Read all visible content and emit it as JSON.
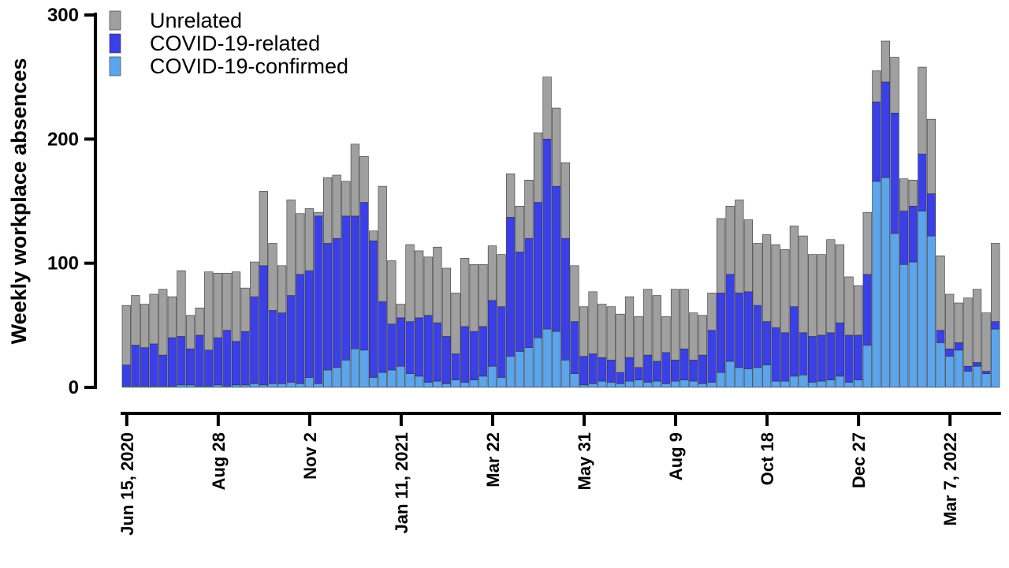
{
  "chart_data": {
    "type": "bar",
    "stacked": true,
    "title": "",
    "xlabel": "",
    "ylabel": "Weekly workplace absences",
    "ylim": [
      0,
      300
    ],
    "yticks": [
      0,
      100,
      200,
      300
    ],
    "grid": false,
    "legend_position": "top-left",
    "x_tick_labels": [
      {
        "week_index": 0,
        "label": "Jun 15, 2020"
      },
      {
        "week_index": 10,
        "label": "Aug 28"
      },
      {
        "week_index": 20,
        "label": "Nov 2"
      },
      {
        "week_index": 30,
        "label": "Jan 11, 2021"
      },
      {
        "week_index": 40,
        "label": "Mar 22"
      },
      {
        "week_index": 50,
        "label": "May 31"
      },
      {
        "week_index": 60,
        "label": "Aug 9"
      },
      {
        "week_index": 70,
        "label": "Oct 18"
      },
      {
        "week_index": 80,
        "label": "Dec 27"
      },
      {
        "week_index": 90,
        "label": "Mar 7, 2022"
      }
    ],
    "series": [
      {
        "name": "COVID-19-confirmed",
        "color": "#5aa5ec",
        "values": [
          1,
          1,
          1,
          1,
          1,
          1,
          2,
          2,
          1,
          1,
          2,
          1,
          2,
          2,
          3,
          2,
          3,
          3,
          4,
          3,
          8,
          3,
          14,
          16,
          22,
          31,
          30,
          8,
          12,
          14,
          17,
          11,
          9,
          4,
          5,
          3,
          6,
          4,
          6,
          9,
          17,
          8,
          25,
          29,
          32,
          40,
          47,
          45,
          22,
          11,
          2,
          3,
          5,
          4,
          3,
          5,
          6,
          4,
          5,
          3,
          5,
          6,
          5,
          3,
          4,
          12,
          21,
          16,
          15,
          16,
          18,
          5,
          5,
          9,
          10,
          4,
          5,
          6,
          9,
          4,
          6,
          34,
          166,
          169,
          124,
          99,
          101,
          142,
          122,
          36,
          25,
          30,
          13,
          17,
          11,
          47
        ]
      },
      {
        "name": "COVID-19-related",
        "color": "#3a3fe6",
        "values": [
          17,
          33,
          31,
          34,
          25,
          39,
          39,
          29,
          41,
          29,
          38,
          45,
          35,
          43,
          70,
          96,
          59,
          57,
          70,
          88,
          86,
          135,
          102,
          104,
          116,
          107,
          119,
          110,
          57,
          37,
          39,
          42,
          47,
          54,
          47,
          38,
          21,
          45,
          39,
          40,
          53,
          57,
          112,
          80,
          88,
          109,
          153,
          117,
          98,
          42,
          23,
          24,
          19,
          18,
          9,
          19,
          10,
          22,
          16,
          25,
          17,
          25,
          17,
          23,
          42,
          64,
          70,
          60,
          62,
          50,
          35,
          43,
          39,
          56,
          34,
          37,
          37,
          38,
          43,
          38,
          36,
          57,
          64,
          77,
          97,
          43,
          45,
          46,
          34,
          10,
          6,
          6,
          4,
          3,
          2,
          6
        ]
      },
      {
        "name": "Unrelated",
        "color": "#a0a0a0",
        "values": [
          48,
          40,
          35,
          40,
          53,
          33,
          53,
          27,
          22,
          63,
          52,
          46,
          56,
          35,
          28,
          60,
          54,
          38,
          77,
          49,
          50,
          3,
          53,
          51,
          28,
          58,
          37,
          8,
          93,
          51,
          11,
          62,
          54,
          47,
          61,
          55,
          49,
          55,
          54,
          50,
          44,
          42,
          35,
          37,
          47,
          56,
          50,
          63,
          61,
          45,
          40,
          50,
          43,
          43,
          47,
          49,
          41,
          53,
          53,
          29,
          57,
          48,
          38,
          32,
          30,
          60,
          55,
          75,
          58,
          50,
          70,
          67,
          67,
          65,
          78,
          66,
          65,
          75,
          63,
          47,
          40,
          50,
          25,
          33,
          45,
          26,
          21,
          70,
          60,
          60,
          44,
          32,
          55,
          59,
          47,
          63
        ]
      }
    ]
  }
}
